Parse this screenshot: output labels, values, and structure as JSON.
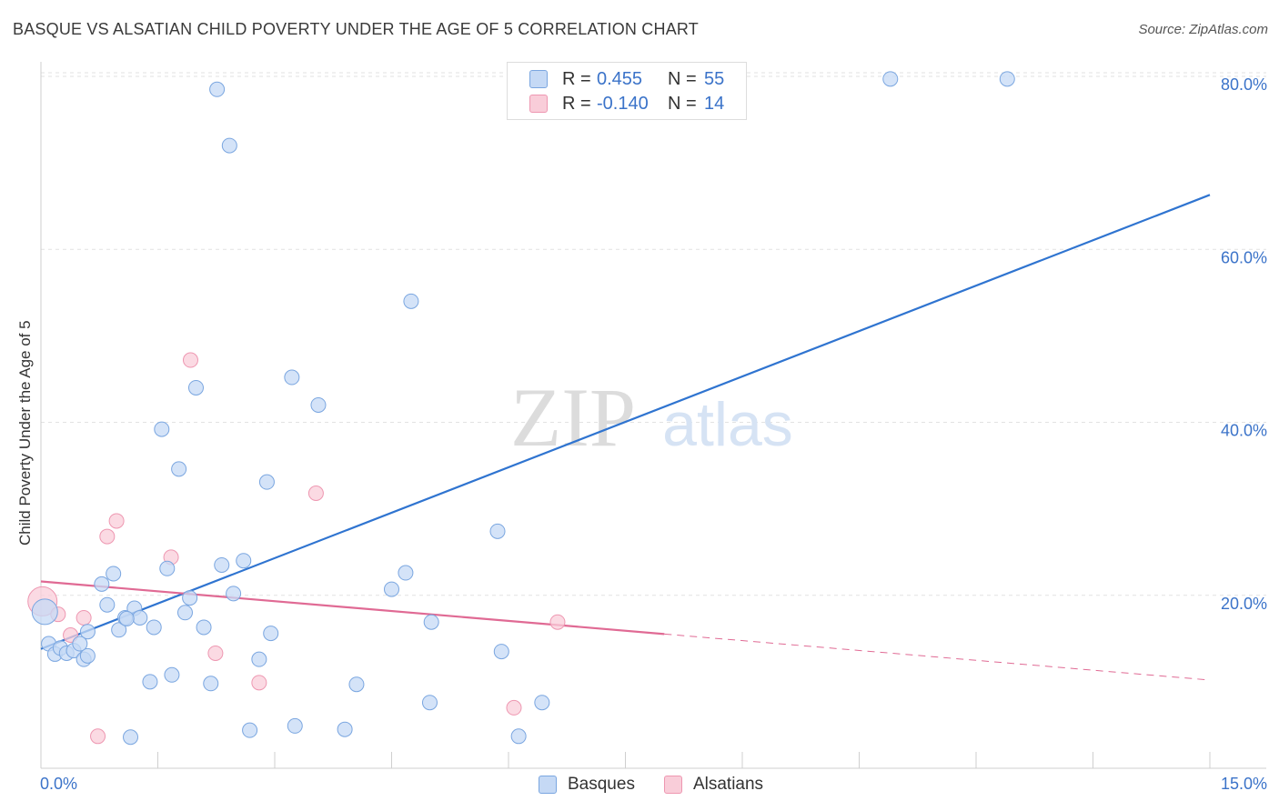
{
  "header": {
    "title": "BASQUE VS ALSATIAN CHILD POVERTY UNDER THE AGE OF 5 CORRELATION CHART",
    "source": "Source: ZipAtlas.com"
  },
  "watermark": {
    "zip": "ZIP",
    "atlas": "atlas"
  },
  "legend": {
    "basques": {
      "r_label": "R =",
      "r_value": "0.455",
      "n_label": "N =",
      "n_value": "55"
    },
    "alsatians": {
      "r_label": "R =",
      "r_value": "-0.140",
      "n_label": "N =",
      "n_value": "14"
    }
  },
  "bottom_legend": {
    "basques": "Basques",
    "alsatians": "Alsatians"
  },
  "colors": {
    "basques_fill": "#c5d9f5",
    "basques_stroke": "#7aa6e0",
    "basques_line": "#2f74d0",
    "alsatians_fill": "#f9cdd9",
    "alsatians_stroke": "#ee97b1",
    "alsatians_line": "#e06a94",
    "axis_text": "#3b73c9",
    "grid": "#e2e2e2"
  },
  "chart_data": {
    "type": "scatter",
    "title": "BASQUE VS ALSATIAN CHILD POVERTY UNDER THE AGE OF 5 CORRELATION CHART",
    "xlabel": "",
    "ylabel": "Child Poverty Under the Age of 5",
    "xlim": [
      0,
      15
    ],
    "ylim": [
      0,
      80
    ],
    "x_tick_labels": [
      "0.0%",
      "15.0%"
    ],
    "y_ticks": [
      20,
      40,
      60,
      80
    ],
    "y_tick_labels": [
      "20.0%",
      "40.0%",
      "60.0%",
      "80.0%"
    ],
    "grid": true,
    "legend_position": "top-center",
    "series": [
      {
        "name": "Basques",
        "r": 0.455,
        "n": 55,
        "trend": {
          "x": [
            0,
            15
          ],
          "y": [
            13.8,
            66.3
          ]
        },
        "points": [
          [
            0.05,
            18.1
          ],
          [
            0.1,
            14.4
          ],
          [
            0.18,
            13.2
          ],
          [
            0.25,
            13.9
          ],
          [
            0.33,
            13.3
          ],
          [
            0.42,
            13.6
          ],
          [
            0.55,
            12.6
          ],
          [
            0.6,
            13.0
          ],
          [
            0.78,
            21.3
          ],
          [
            0.85,
            18.9
          ],
          [
            0.93,
            22.5
          ],
          [
            1.0,
            16.0
          ],
          [
            1.08,
            17.4
          ],
          [
            1.15,
            3.6
          ],
          [
            1.2,
            18.5
          ],
          [
            1.27,
            17.4
          ],
          [
            1.4,
            10.0
          ],
          [
            1.45,
            16.3
          ],
          [
            1.55,
            39.2
          ],
          [
            1.62,
            23.1
          ],
          [
            1.68,
            10.8
          ],
          [
            1.77,
            34.6
          ],
          [
            1.85,
            18.0
          ],
          [
            1.91,
            19.7
          ],
          [
            1.99,
            44.0
          ],
          [
            2.09,
            16.3
          ],
          [
            2.18,
            9.8
          ],
          [
            2.26,
            78.5
          ],
          [
            2.32,
            23.5
          ],
          [
            2.42,
            72.0
          ],
          [
            2.47,
            20.2
          ],
          [
            2.6,
            24.0
          ],
          [
            2.68,
            4.4
          ],
          [
            2.8,
            12.6
          ],
          [
            2.9,
            33.1
          ],
          [
            2.95,
            15.6
          ],
          [
            3.22,
            45.2
          ],
          [
            3.26,
            4.9
          ],
          [
            3.56,
            42.0
          ],
          [
            3.9,
            4.5
          ],
          [
            4.05,
            9.7
          ],
          [
            4.5,
            20.7
          ],
          [
            4.68,
            22.6
          ],
          [
            4.75,
            54.0
          ],
          [
            4.99,
            7.6
          ],
          [
            5.01,
            16.9
          ],
          [
            5.86,
            27.4
          ],
          [
            5.91,
            13.5
          ],
          [
            6.13,
            3.7
          ],
          [
            6.43,
            7.6
          ],
          [
            10.9,
            79.7
          ],
          [
            12.4,
            79.7
          ],
          [
            0.6,
            15.8
          ],
          [
            0.5,
            14.4
          ],
          [
            1.1,
            17.3
          ]
        ]
      },
      {
        "name": "Alsatians",
        "r": -0.14,
        "n": 14,
        "trend": {
          "x": [
            0,
            15
          ],
          "y": [
            21.6,
            10.2
          ],
          "solid_until": 8.0
        },
        "points": [
          [
            0.02,
            19.3
          ],
          [
            0.22,
            17.8
          ],
          [
            0.38,
            15.4
          ],
          [
            0.55,
            17.4
          ],
          [
            0.73,
            3.7
          ],
          [
            0.85,
            26.8
          ],
          [
            0.97,
            28.6
          ],
          [
            1.67,
            24.4
          ],
          [
            1.92,
            47.2
          ],
          [
            2.24,
            13.3
          ],
          [
            2.8,
            9.9
          ],
          [
            3.53,
            31.8
          ],
          [
            6.07,
            7.0
          ],
          [
            6.63,
            16.9
          ]
        ]
      }
    ]
  }
}
